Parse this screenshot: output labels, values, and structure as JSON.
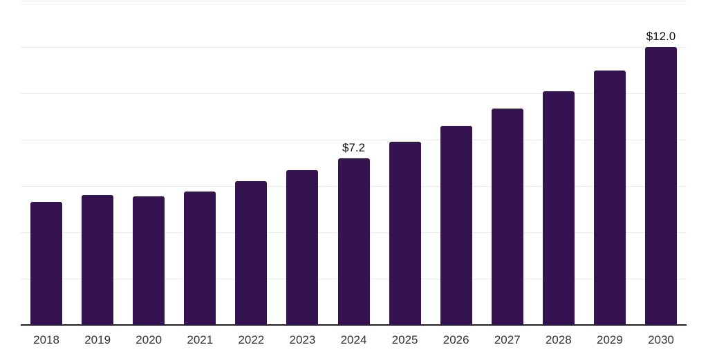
{
  "chart_data": {
    "type": "bar",
    "title": "",
    "xlabel": "",
    "ylabel": "",
    "categories": [
      "2018",
      "2019",
      "2020",
      "2021",
      "2022",
      "2023",
      "2024",
      "2025",
      "2026",
      "2027",
      "2028",
      "2029",
      "2030"
    ],
    "values": [
      5.3,
      5.6,
      5.55,
      5.75,
      6.2,
      6.7,
      7.2,
      7.9,
      8.6,
      9.35,
      10.1,
      11.0,
      12.0
    ],
    "data_labels": [
      "",
      "",
      "",
      "",
      "",
      "",
      "$7.2",
      "",
      "",
      "",
      "",
      "",
      "$12.0"
    ],
    "ylim": [
      0,
      14
    ],
    "grid": true,
    "gridline_step": 2,
    "legend": "none",
    "y_axis_labels_visible": false,
    "colors": {
      "bar": "#351250",
      "axis_line": "#222222",
      "gridline": "#ebebeb",
      "tick_label": "#333333",
      "data_label": "#111111",
      "background": "#ffffff"
    }
  }
}
